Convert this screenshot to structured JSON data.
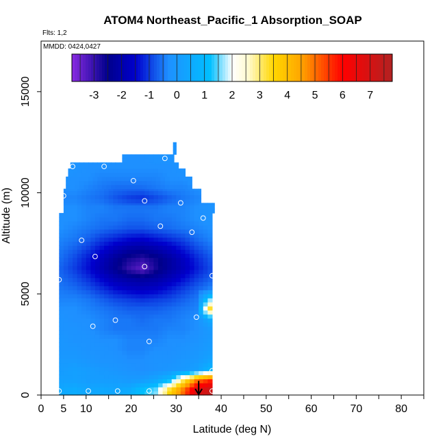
{
  "chart_data": {
    "type": "heatmap",
    "title": "ATOM4 Northeast_Pacific_1 Absorption_SOAP",
    "flights_label": "Flts: 1,2",
    "dates_label": "MMDD: 0424,0427",
    "xlabel": "Latitude (deg N)",
    "ylabel": "Altitude (m)",
    "xlim": [
      0,
      85
    ],
    "ylim": [
      0,
      17500
    ],
    "x_ticks": [
      0,
      5,
      10,
      20,
      30,
      40,
      50,
      60,
      70,
      80
    ],
    "x_tick_labels": [
      "0",
      "5",
      "10",
      "20",
      "30",
      "40",
      "50",
      "60",
      "70",
      "80"
    ],
    "x_minor_ticks": [
      15,
      25,
      35,
      45,
      55,
      65,
      75,
      85
    ],
    "y_ticks": [
      0,
      5000,
      10000,
      15000
    ],
    "y_tick_labels": [
      "0",
      "5000",
      "10000",
      "15000"
    ],
    "colorbar": {
      "range": [
        -3.8,
        7.8
      ],
      "ticks": [
        -3,
        -2,
        -1,
        0,
        1,
        2,
        3,
        4,
        5,
        6,
        7
      ],
      "tick_labels": [
        "-3",
        "-2",
        "-1",
        "0",
        "1",
        "2",
        "3",
        "4",
        "5",
        "6",
        "7"
      ],
      "colors": [
        "#8a2be2",
        "#00008b",
        "#0000cd",
        "#1e90ff",
        "#00bfff",
        "#ffffff",
        "#fffacd",
        "#ffd700",
        "#ffa500",
        "#ff0000",
        "#b22222"
      ],
      "color_stops": [
        -3.8,
        -2.5,
        -1.5,
        -0.3,
        1.2,
        2.0,
        2.6,
        3.5,
        4.5,
        6.0,
        7.8
      ]
    },
    "field": {
      "lat_centers": [
        4.5,
        7.5,
        10.5,
        13.5,
        16.5,
        19.5,
        22.5,
        25.5,
        28.5,
        31.5,
        34.5,
        37.5
      ],
      "alt_centers": [
        250,
        750,
        1250,
        1750,
        2250,
        2750,
        3250,
        3750,
        4250,
        4750,
        5250,
        5750,
        6250,
        6750,
        7250,
        7750,
        8250,
        8750,
        9250,
        9750,
        10250,
        10750,
        11250,
        11750,
        12250
      ],
      "values": [
        [
          0.5,
          0.6,
          0.4,
          0.5,
          0.4,
          0.6,
          1.2,
          1.6,
          3.5,
          5.0,
          6.8,
          7.3
        ],
        [
          0.2,
          0.2,
          0.1,
          0.1,
          0.1,
          0.0,
          0.1,
          0.4,
          1.0,
          3.0,
          4.8,
          5.6
        ],
        [
          0.1,
          0.2,
          0.1,
          0.0,
          -0.1,
          -0.2,
          -0.3,
          -0.2,
          -0.1,
          0.0,
          0.2,
          0.9
        ],
        [
          0.0,
          0.0,
          -0.1,
          -0.2,
          -0.2,
          -0.3,
          -0.3,
          -0.2,
          -0.2,
          -0.1,
          0.0,
          0.3
        ],
        [
          -0.1,
          -0.1,
          -0.2,
          -0.2,
          -0.3,
          -0.4,
          -0.4,
          -0.3,
          -0.3,
          -0.2,
          -0.1,
          0.1
        ],
        [
          -0.1,
          -0.2,
          -0.2,
          -0.3,
          -0.3,
          -0.4,
          -0.4,
          -0.4,
          -0.3,
          -0.3,
          -0.2,
          0.0
        ],
        [
          -0.2,
          -0.2,
          -0.3,
          -0.4,
          -0.5,
          -0.5,
          -0.5,
          -0.5,
          -0.4,
          -0.4,
          -0.3,
          0.0
        ],
        [
          -0.2,
          -0.3,
          -0.3,
          -0.4,
          -0.5,
          -0.5,
          -0.6,
          -0.5,
          -0.5,
          -0.4,
          -0.3,
          0.5
        ],
        [
          -0.3,
          -0.3,
          -0.4,
          -0.5,
          -0.6,
          -0.7,
          -0.7,
          -0.7,
          -0.6,
          -0.5,
          -0.4,
          3.5
        ],
        [
          -0.4,
          -0.4,
          -0.5,
          -0.7,
          -0.9,
          -1.0,
          -1.1,
          -1.0,
          -0.9,
          -0.7,
          -0.5,
          1.5
        ],
        [
          -0.5,
          -0.6,
          -0.8,
          -1.1,
          -1.4,
          -1.6,
          -1.7,
          -1.6,
          -1.3,
          -1.0,
          -0.7,
          -0.4
        ],
        [
          -0.6,
          -0.8,
          -1.1,
          -1.5,
          -1.9,
          -2.1,
          -2.2,
          -2.1,
          -1.8,
          -1.4,
          -1.0,
          -0.7
        ],
        [
          -0.7,
          -1.0,
          -1.4,
          -1.9,
          -2.4,
          -3.0,
          -3.4,
          -2.7,
          -2.2,
          -1.8,
          -1.3,
          -0.9
        ],
        [
          -0.6,
          -0.9,
          -1.3,
          -1.8,
          -2.3,
          -2.7,
          -2.9,
          -2.6,
          -2.2,
          -1.7,
          -1.2,
          -0.8
        ],
        [
          -0.5,
          -0.7,
          -1.0,
          -1.4,
          -1.8,
          -2.1,
          -2.2,
          -2.0,
          -1.7,
          -1.3,
          -0.9,
          -0.6
        ],
        [
          -0.4,
          -0.5,
          -0.7,
          -1.0,
          -1.2,
          -1.4,
          -1.5,
          -1.3,
          -1.1,
          -0.9,
          -0.6,
          -0.4
        ],
        [
          -0.3,
          -0.4,
          -0.5,
          -0.6,
          -0.7,
          -0.8,
          -0.8,
          -0.7,
          -0.6,
          -0.5,
          -0.4,
          -0.3
        ],
        [
          -0.3,
          -0.3,
          -0.4,
          -0.5,
          -0.5,
          -0.6,
          -0.6,
          -0.5,
          -0.5,
          -0.4,
          -0.3,
          -0.2
        ],
        [
          -0.3,
          -0.3,
          -0.4,
          -0.4,
          -0.5,
          -0.5,
          -0.5,
          -0.5,
          -0.4,
          -0.4,
          -0.3,
          -0.2
        ],
        [
          -0.4,
          -0.4,
          -0.5,
          -0.6,
          -0.8,
          -1.0,
          -1.1,
          -0.9,
          -0.7,
          -0.5,
          -0.4,
          -0.3
        ],
        [
          -0.3,
          -0.3,
          -0.4,
          -0.5,
          -0.6,
          -0.6,
          -0.6,
          -0.5,
          -0.4,
          -0.4,
          -0.3,
          -0.2
        ],
        [
          -0.2,
          -0.3,
          -0.3,
          -0.4,
          -0.4,
          -0.4,
          -0.4,
          -0.4,
          -0.3,
          -0.3,
          -0.2,
          -0.2
        ],
        [
          -0.2,
          -0.2,
          -0.3,
          -0.3,
          -0.3,
          -0.3,
          -0.3,
          -0.3,
          -0.3,
          -0.2,
          -0.2,
          -0.2
        ],
        [
          -0.2,
          -0.2,
          -0.2,
          -0.2,
          -0.2,
          -0.3,
          -0.3,
          -0.2,
          -0.2,
          -0.2,
          -0.2,
          -0.2
        ],
        [
          -0.1,
          -0.1,
          -0.1,
          -0.1,
          -0.2,
          -0.2,
          -0.2,
          -0.2,
          -0.2,
          -0.2,
          -0.2,
          -0.1
        ]
      ],
      "coverage": [
        [
          4.0,
          38.0,
          0,
          6000
        ],
        [
          4.0,
          38.0,
          6000,
          8000
        ],
        [
          4.0,
          38.0,
          8000,
          9000
        ],
        [
          5.0,
          38.5,
          9000,
          9500
        ],
        [
          5.0,
          35.5,
          9500,
          10200
        ],
        [
          5.5,
          33.5,
          10200,
          10800
        ],
        [
          6.0,
          32.0,
          10800,
          11200
        ],
        [
          6.5,
          30.5,
          11200,
          11500
        ],
        [
          18.0,
          29.5,
          11500,
          11900
        ],
        [
          29.3,
          30.0,
          11900,
          12500
        ]
      ]
    },
    "sample_points": [
      [
        4.0,
        200
      ],
      [
        10.5,
        200
      ],
      [
        17.0,
        200
      ],
      [
        24.0,
        200
      ],
      [
        38.0,
        200
      ],
      [
        38.0,
        1200
      ],
      [
        24.0,
        2650
      ],
      [
        11.5,
        3400
      ],
      [
        16.5,
        3700
      ],
      [
        34.5,
        3850
      ],
      [
        4.0,
        5700
      ],
      [
        38.0,
        5900
      ],
      [
        23.0,
        6350
      ],
      [
        12.0,
        6850
      ],
      [
        9.0,
        7650
      ],
      [
        33.5,
        8050
      ],
      [
        26.5,
        8350
      ],
      [
        36.0,
        8750
      ],
      [
        5.0,
        9850
      ],
      [
        23.0,
        9600
      ],
      [
        31.0,
        9500
      ],
      [
        20.5,
        10600
      ],
      [
        7.0,
        11300
      ],
      [
        14.0,
        11300
      ],
      [
        27.5,
        11700
      ]
    ],
    "marker": {
      "lat": 35,
      "alt_top": 700,
      "alt_bottom": 0,
      "label": "down-arrow"
    }
  }
}
